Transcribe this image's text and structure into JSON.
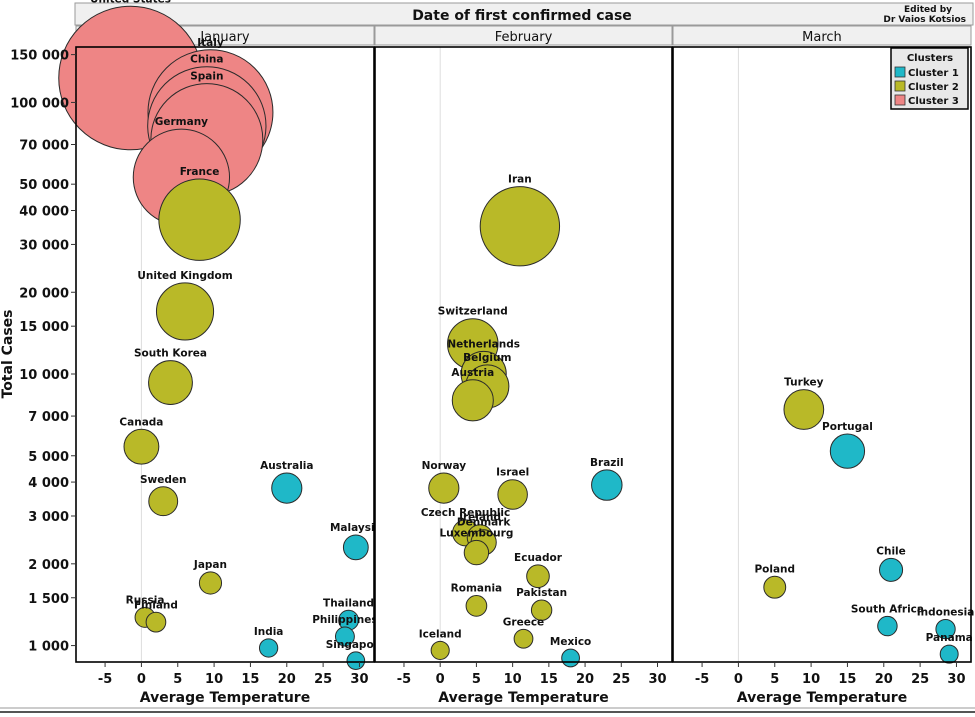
{
  "title": "Date of first confirmed case",
  "credit": [
    "Edited by",
    "Dr Vaios Kotsios"
  ],
  "ylabel": "Total Cases",
  "yticks": [
    {
      "v": 150000,
      "t": "150 000"
    },
    {
      "v": 100000,
      "t": "100 000"
    },
    {
      "v": 70000,
      "t": "70 000"
    },
    {
      "v": 50000,
      "t": "50 000"
    },
    {
      "v": 40000,
      "t": "40 000"
    },
    {
      "v": 30000,
      "t": "30 000"
    },
    {
      "v": 20000,
      "t": "20 000"
    },
    {
      "v": 15000,
      "t": "15 000"
    },
    {
      "v": 10000,
      "t": "10 000"
    },
    {
      "v": 7000,
      "t": "7 000"
    },
    {
      "v": 5000,
      "t": "5 000"
    },
    {
      "v": 4000,
      "t": "4 000"
    },
    {
      "v": 3000,
      "t": "3 000"
    },
    {
      "v": 2000,
      "t": "2 000"
    },
    {
      "v": 1500,
      "t": "1 500"
    },
    {
      "v": 1000,
      "t": "1 000"
    }
  ],
  "legend": {
    "title": "Clusters",
    "items": [
      {
        "name": "Cluster 1",
        "color": "#1fb8c8"
      },
      {
        "name": "Cluster 2",
        "color": "#b9b928"
      },
      {
        "name": "Cluster 3",
        "color": "#ee8585"
      }
    ]
  },
  "chart_data": {
    "type": "scatter",
    "title": "Date of first confirmed case",
    "xlabel": "Average Temperature",
    "ylabel": "Total Cases",
    "yscale": "log",
    "xlim": [
      -9,
      32
    ],
    "ylim": [
      870,
      160000
    ],
    "xticks": [
      -5,
      0,
      5,
      10,
      15,
      20,
      25,
      30
    ],
    "grid": false,
    "legend": "top-right",
    "panels": [
      {
        "name": "January",
        "points": [
          {
            "label": "United States",
            "x": -1.5,
            "y": 123000,
            "cluster": 3
          },
          {
            "label": "Italy",
            "x": 9.5,
            "y": 92000,
            "cluster": 3
          },
          {
            "label": "China",
            "x": 9,
            "y": 82000,
            "cluster": 3
          },
          {
            "label": "Spain",
            "x": 9,
            "y": 73000,
            "cluster": 3
          },
          {
            "label": "Germany",
            "x": 5.5,
            "y": 53000,
            "cluster": 3
          },
          {
            "label": "France",
            "x": 8,
            "y": 37000,
            "cluster": 2
          },
          {
            "label": "United Kingdom",
            "x": 6,
            "y": 17000,
            "cluster": 2
          },
          {
            "label": "South Korea",
            "x": 4,
            "y": 9300,
            "cluster": 2
          },
          {
            "label": "Canada",
            "x": 0,
            "y": 5400,
            "cluster": 2
          },
          {
            "label": "Australia",
            "x": 20,
            "y": 3800,
            "cluster": 1
          },
          {
            "label": "Sweden",
            "x": 3,
            "y": 3400,
            "cluster": 2
          },
          {
            "label": "Malaysia",
            "x": 29.5,
            "y": 2300,
            "cluster": 1
          },
          {
            "label": "Japan",
            "x": 9.5,
            "y": 1700,
            "cluster": 2
          },
          {
            "label": "Russia",
            "x": 0.5,
            "y": 1270,
            "cluster": 2
          },
          {
            "label": "Finland",
            "x": 2,
            "y": 1220,
            "cluster": 2
          },
          {
            "label": "Thailand",
            "x": 28.5,
            "y": 1240,
            "cluster": 1
          },
          {
            "label": "Philippines",
            "x": 28,
            "y": 1080,
            "cluster": 1
          },
          {
            "label": "India",
            "x": 17.5,
            "y": 980,
            "cluster": 1
          },
          {
            "label": "Singapore",
            "x": 29.5,
            "y": 880,
            "cluster": 1
          }
        ]
      },
      {
        "name": "February",
        "points": [
          {
            "label": "Iran",
            "x": 11,
            "y": 35000,
            "cluster": 2
          },
          {
            "label": "Switzerland",
            "x": 4.5,
            "y": 12900,
            "cluster": 2
          },
          {
            "label": "Netherlands",
            "x": 6,
            "y": 10000,
            "cluster": 2
          },
          {
            "label": "Belgium",
            "x": 6.5,
            "y": 9000,
            "cluster": 2
          },
          {
            "label": "Austria",
            "x": 4.5,
            "y": 8000,
            "cluster": 2
          },
          {
            "label": "Norway",
            "x": 0.5,
            "y": 3800,
            "cluster": 2
          },
          {
            "label": "Israel",
            "x": 10,
            "y": 3600,
            "cluster": 2
          },
          {
            "label": "Brazil",
            "x": 23,
            "y": 3900,
            "cluster": 1
          },
          {
            "label": "Czech Republic",
            "x": 3.5,
            "y": 2600,
            "cluster": 2
          },
          {
            "label": "Ireland",
            "x": 5.5,
            "y": 2500,
            "cluster": 2
          },
          {
            "label": "Denmark",
            "x": 6,
            "y": 2400,
            "cluster": 2
          },
          {
            "label": "Luxembourg",
            "x": 5,
            "y": 2200,
            "cluster": 2
          },
          {
            "label": "Ecuador",
            "x": 13.5,
            "y": 1800,
            "cluster": 2
          },
          {
            "label": "Romania",
            "x": 5,
            "y": 1400,
            "cluster": 2
          },
          {
            "label": "Pakistan",
            "x": 14,
            "y": 1350,
            "cluster": 2
          },
          {
            "label": "Iceland",
            "x": 0,
            "y": 960,
            "cluster": 2
          },
          {
            "label": "Greece",
            "x": 11.5,
            "y": 1060,
            "cluster": 2
          },
          {
            "label": "Mexico",
            "x": 18,
            "y": 900,
            "cluster": 1
          }
        ]
      },
      {
        "name": "March",
        "points": [
          {
            "label": "Turkey",
            "x": 9,
            "y": 7400,
            "cluster": 2
          },
          {
            "label": "Portugal",
            "x": 15,
            "y": 5200,
            "cluster": 1
          },
          {
            "label": "Poland",
            "x": 5,
            "y": 1640,
            "cluster": 2
          },
          {
            "label": "Chile",
            "x": 21,
            "y": 1900,
            "cluster": 1
          },
          {
            "label": "South Africa",
            "x": 20.5,
            "y": 1180,
            "cluster": 1
          },
          {
            "label": "Indonesia",
            "x": 28.5,
            "y": 1150,
            "cluster": 1
          },
          {
            "label": "Panama",
            "x": 29,
            "y": 930,
            "cluster": 1
          }
        ]
      }
    ]
  }
}
